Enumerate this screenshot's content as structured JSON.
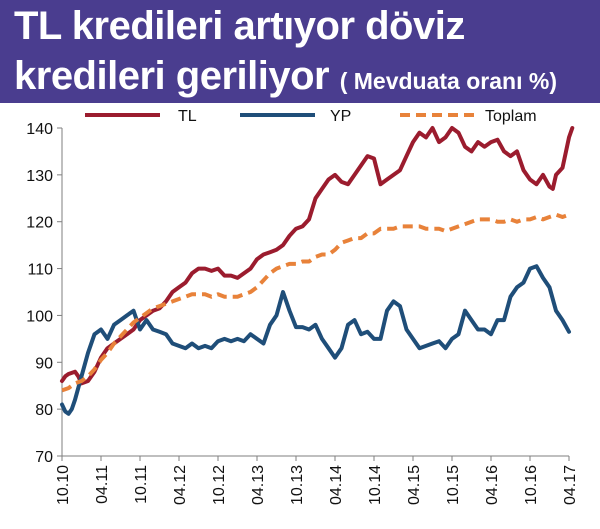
{
  "header": {
    "title_line1": "TL kredileri artıyor döviz",
    "title_line2": "kredileri geriliyor",
    "subtitle": "( Mevduata oranı %)"
  },
  "colors": {
    "header_bg": "#4a3d8f",
    "TL": "#9b1c2e",
    "YP": "#1f4e79",
    "Toplam": "#e8823a"
  },
  "chart_data": {
    "type": "line",
    "title": "TL kredileri artıyor döviz kredileri geriliyor",
    "subtitle": "( Mevduata oranı %)",
    "ylim": [
      70,
      140
    ],
    "yticks": [
      70,
      80,
      90,
      100,
      110,
      120,
      130,
      140
    ],
    "xlim": [
      0,
      78
    ],
    "xticks": [
      {
        "label": "10.10",
        "pos": 0
      },
      {
        "label": "04.11",
        "pos": 6
      },
      {
        "label": "10.11",
        "pos": 12
      },
      {
        "label": "04.12",
        "pos": 18
      },
      {
        "label": "10.12",
        "pos": 24
      },
      {
        "label": "04.13",
        "pos": 30
      },
      {
        "label": "10.13",
        "pos": 36
      },
      {
        "label": "04.14",
        "pos": 42
      },
      {
        "label": "10.14",
        "pos": 48
      },
      {
        "label": "04.15",
        "pos": 54
      },
      {
        "label": "10.15",
        "pos": 60
      },
      {
        "label": "04.16",
        "pos": 66
      },
      {
        "label": "10.16",
        "pos": 72
      },
      {
        "label": "04.17",
        "pos": 78
      }
    ],
    "legend_position": "top",
    "series": [
      {
        "name": "TL",
        "style": "solid",
        "points": [
          [
            0,
            86
          ],
          [
            0.5,
            87
          ],
          [
            1,
            87.5
          ],
          [
            2,
            88
          ],
          [
            2.5,
            87
          ],
          [
            3,
            85.5
          ],
          [
            4,
            86
          ],
          [
            5,
            88
          ],
          [
            6,
            91
          ],
          [
            7,
            93
          ],
          [
            8,
            94
          ],
          [
            9,
            95
          ],
          [
            10,
            96
          ],
          [
            11,
            97
          ],
          [
            12,
            99
          ],
          [
            13,
            100
          ],
          [
            14,
            101
          ],
          [
            15,
            101.5
          ],
          [
            16,
            103
          ],
          [
            17,
            105
          ],
          [
            18,
            106
          ],
          [
            19,
            107
          ],
          [
            20,
            109
          ],
          [
            21,
            110
          ],
          [
            22,
            110
          ],
          [
            23,
            109.5
          ],
          [
            24,
            110
          ],
          [
            25,
            108.5
          ],
          [
            26,
            108.5
          ],
          [
            27,
            108
          ],
          [
            28,
            109
          ],
          [
            29,
            110
          ],
          [
            30,
            112
          ],
          [
            31,
            113
          ],
          [
            32,
            113.5
          ],
          [
            33,
            114
          ],
          [
            34,
            115
          ],
          [
            35,
            117
          ],
          [
            36,
            118.5
          ],
          [
            37,
            119
          ],
          [
            38,
            120.5
          ],
          [
            39,
            125
          ],
          [
            40,
            127
          ],
          [
            41,
            129
          ],
          [
            42,
            130
          ],
          [
            43,
            128.5
          ],
          [
            44,
            128
          ],
          [
            45,
            130
          ],
          [
            46,
            132
          ],
          [
            47,
            134
          ],
          [
            48,
            133.5
          ],
          [
            49,
            128
          ],
          [
            50,
            129
          ],
          [
            51,
            130
          ],
          [
            52,
            131
          ],
          [
            53,
            134
          ],
          [
            54,
            137
          ],
          [
            55,
            139
          ],
          [
            56,
            138
          ],
          [
            57,
            140
          ],
          [
            58,
            137
          ],
          [
            59,
            138
          ],
          [
            60,
            140
          ],
          [
            61,
            139
          ],
          [
            62,
            136
          ],
          [
            63,
            135
          ],
          [
            64,
            137
          ],
          [
            65,
            136
          ],
          [
            66,
            137
          ],
          [
            67,
            137.5
          ],
          [
            68,
            135
          ],
          [
            69,
            134
          ],
          [
            70,
            135
          ],
          [
            71,
            131
          ],
          [
            72,
            129
          ],
          [
            73,
            128
          ],
          [
            74,
            130
          ],
          [
            75,
            127.5
          ],
          [
            75.5,
            127
          ],
          [
            76,
            130
          ],
          [
            77,
            131.5
          ],
          [
            78,
            138
          ],
          [
            78.5,
            140
          ]
        ]
      },
      {
        "name": "YP",
        "style": "solid",
        "points": [
          [
            0,
            81
          ],
          [
            0.5,
            79.5
          ],
          [
            1,
            79
          ],
          [
            1.5,
            80
          ],
          [
            2,
            82
          ],
          [
            3,
            87
          ],
          [
            4,
            92
          ],
          [
            5,
            96
          ],
          [
            6,
            97
          ],
          [
            7,
            95
          ],
          [
            8,
            98
          ],
          [
            9,
            99
          ],
          [
            10,
            100
          ],
          [
            11,
            101
          ],
          [
            12,
            97
          ],
          [
            13,
            99
          ],
          [
            14,
            97
          ],
          [
            15,
            96.5
          ],
          [
            16,
            96
          ],
          [
            17,
            94
          ],
          [
            18,
            93.5
          ],
          [
            19,
            93
          ],
          [
            20,
            94
          ],
          [
            21,
            93
          ],
          [
            22,
            93.5
          ],
          [
            23,
            93
          ],
          [
            24,
            94.5
          ],
          [
            25,
            95
          ],
          [
            26,
            94.5
          ],
          [
            27,
            95
          ],
          [
            28,
            94.5
          ],
          [
            29,
            96
          ],
          [
            30,
            95
          ],
          [
            31,
            94
          ],
          [
            32,
            98
          ],
          [
            33,
            100
          ],
          [
            34,
            105
          ],
          [
            35,
            101
          ],
          [
            36,
            97.5
          ],
          [
            37,
            97.5
          ],
          [
            38,
            97
          ],
          [
            39,
            98
          ],
          [
            40,
            95
          ],
          [
            41,
            93
          ],
          [
            42,
            91
          ],
          [
            43,
            93
          ],
          [
            44,
            98
          ],
          [
            45,
            99
          ],
          [
            46,
            96
          ],
          [
            47,
            96.5
          ],
          [
            48,
            95
          ],
          [
            49,
            95
          ],
          [
            50,
            101
          ],
          [
            51,
            103
          ],
          [
            52,
            102
          ],
          [
            53,
            97
          ],
          [
            54,
            95
          ],
          [
            55,
            93
          ],
          [
            56,
            93.5
          ],
          [
            57,
            94
          ],
          [
            58,
            94.5
          ],
          [
            59,
            93
          ],
          [
            60,
            95
          ],
          [
            61,
            96
          ],
          [
            62,
            101
          ],
          [
            63,
            99
          ],
          [
            64,
            97
          ],
          [
            65,
            97
          ],
          [
            66,
            96
          ],
          [
            67,
            99
          ],
          [
            68,
            99
          ],
          [
            69,
            104
          ],
          [
            70,
            106
          ],
          [
            71,
            107
          ],
          [
            72,
            110
          ],
          [
            73,
            110.5
          ],
          [
            74,
            108
          ],
          [
            75,
            106
          ],
          [
            76,
            101
          ],
          [
            77,
            99
          ],
          [
            78,
            96.5
          ]
        ]
      },
      {
        "name": "Toplam",
        "style": "dashed",
        "points": [
          [
            0,
            84
          ],
          [
            1,
            84.5
          ],
          [
            2,
            85.5
          ],
          [
            3,
            86
          ],
          [
            4,
            87
          ],
          [
            5,
            88.5
          ],
          [
            6,
            90.5
          ],
          [
            7,
            92
          ],
          [
            8,
            94
          ],
          [
            9,
            95.5
          ],
          [
            10,
            97
          ],
          [
            11,
            98.5
          ],
          [
            12,
            99.5
          ],
          [
            13,
            100.5
          ],
          [
            14,
            101.5
          ],
          [
            15,
            102
          ],
          [
            16,
            102.5
          ],
          [
            17,
            103
          ],
          [
            18,
            103.5
          ],
          [
            19,
            104
          ],
          [
            20,
            104.5
          ],
          [
            21,
            104.5
          ],
          [
            22,
            104.5
          ],
          [
            23,
            104
          ],
          [
            24,
            104.5
          ],
          [
            25,
            104
          ],
          [
            26,
            104
          ],
          [
            27,
            104
          ],
          [
            28,
            104.5
          ],
          [
            29,
            105
          ],
          [
            30,
            106
          ],
          [
            31,
            107.5
          ],
          [
            32,
            109
          ],
          [
            33,
            110
          ],
          [
            34,
            110.5
          ],
          [
            35,
            111
          ],
          [
            36,
            111
          ],
          [
            37,
            111.5
          ],
          [
            38,
            111.5
          ],
          [
            39,
            112.5
          ],
          [
            40,
            113
          ],
          [
            41,
            113
          ],
          [
            42,
            114
          ],
          [
            43,
            115.5
          ],
          [
            44,
            116
          ],
          [
            45,
            116.5
          ],
          [
            46,
            116.5
          ],
          [
            47,
            117.5
          ],
          [
            48,
            117.5
          ],
          [
            49,
            118.5
          ],
          [
            50,
            118.5
          ],
          [
            51,
            118.5
          ],
          [
            52,
            119
          ],
          [
            53,
            119
          ],
          [
            54,
            119
          ],
          [
            55,
            119
          ],
          [
            56,
            118.5
          ],
          [
            57,
            118.5
          ],
          [
            58,
            118.5
          ],
          [
            59,
            118
          ],
          [
            60,
            118.5
          ],
          [
            61,
            119
          ],
          [
            62,
            119.5
          ],
          [
            63,
            120
          ],
          [
            64,
            120.5
          ],
          [
            65,
            120.5
          ],
          [
            66,
            120.5
          ],
          [
            67,
            120
          ],
          [
            68,
            120
          ],
          [
            69,
            120.5
          ],
          [
            70,
            120
          ],
          [
            71,
            120.5
          ],
          [
            72,
            120.5
          ],
          [
            73,
            121
          ],
          [
            74,
            120.5
          ],
          [
            75,
            121
          ],
          [
            76,
            121.5
          ],
          [
            77,
            121
          ],
          [
            78,
            121.5
          ]
        ]
      }
    ]
  }
}
